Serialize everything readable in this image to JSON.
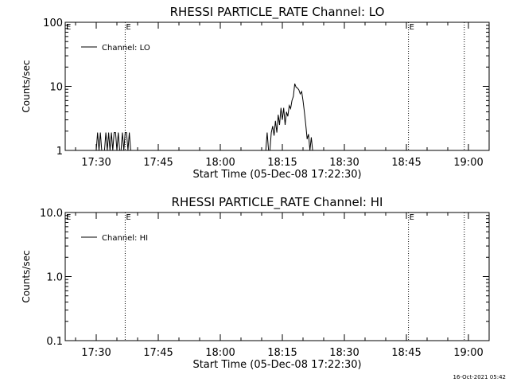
{
  "footer_timestamp": "16-Oct-2021 05:42",
  "chart_data": [
    {
      "type": "line",
      "title": "RHESSI PARTICLE_RATE Channel: LO",
      "xlabel": "Start Time (05-Dec-08 17:22:30)",
      "ylabel": "Counts/sec",
      "yscale": "log",
      "ylim": [
        1,
        100
      ],
      "xlim": [
        "17:22:30",
        "19:05:00"
      ],
      "x_ticks": [
        "17:30",
        "17:45",
        "18:00",
        "18:15",
        "18:30",
        "18:45",
        "19:00"
      ],
      "y_ticks": [
        "1",
        "10",
        "100"
      ],
      "grid": false,
      "legend": "top-left",
      "markers": [
        {
          "time": "17:37:00",
          "label": "E",
          "style": "dotted"
        },
        {
          "time": "18:45:30",
          "label": "E",
          "style": "dotted"
        },
        {
          "time": "18:59:00",
          "label": "",
          "style": "dotted"
        }
      ],
      "series": [
        {
          "name": "Channel: LO",
          "x": [
            "17:30:00",
            "17:30:20",
            "17:30:40",
            "17:31:00",
            "17:31:20",
            "17:31:40",
            "17:32:00",
            "17:32:20",
            "17:32:40",
            "17:33:00",
            "17:33:20",
            "17:33:40",
            "17:34:00",
            "17:34:20",
            "17:34:40",
            "17:35:00",
            "17:35:20",
            "17:35:40",
            "17:36:00",
            "17:36:20",
            "17:36:40",
            "17:37:00",
            "17:37:20",
            "17:37:40",
            "17:38:00",
            "17:38:20",
            "17:38:40",
            "18:11:00",
            "18:11:20",
            "18:11:40",
            "18:12:00",
            "18:12:20",
            "18:12:40",
            "18:13:00",
            "18:13:20",
            "18:13:40",
            "18:14:00",
            "18:14:20",
            "18:14:40",
            "18:15:00",
            "18:15:20",
            "18:15:40",
            "18:16:00",
            "18:16:20",
            "18:16:40",
            "18:17:00",
            "18:17:20",
            "18:17:40",
            "18:18:00",
            "18:18:20",
            "18:18:40",
            "18:19:00",
            "18:19:20",
            "18:19:40",
            "18:20:00",
            "18:20:20",
            "18:20:40",
            "18:21:00",
            "18:21:20",
            "18:21:40",
            "18:22:00",
            "18:22:20",
            "18:22:40",
            "18:23:00",
            "18:23:20",
            "18:23:40",
            "18:24:00",
            "18:24:20",
            "18:24:40",
            "18:25:00",
            "18:25:20",
            "18:25:40"
          ],
          "values": [
            1,
            1.9,
            1,
            1.9,
            1,
            1,
            1,
            1.9,
            1,
            1.9,
            1,
            1.9,
            1,
            1.9,
            1.9,
            1,
            1.9,
            1,
            1,
            1.9,
            1,
            1.9,
            1.9,
            1,
            1.9,
            1,
            1,
            1,
            1.9,
            1,
            1,
            1.9,
            2.4,
            1.7,
            2.9,
            1.9,
            3.6,
            2.5,
            4.6,
            3.0,
            4.6,
            2.5,
            4.0,
            3.4,
            5.0,
            4.5,
            6.0,
            7.0,
            11,
            9.7,
            9.4,
            8.8,
            7.6,
            8.3,
            6.0,
            4.0,
            2.5,
            1.5,
            1.8,
            1,
            1.6,
            1,
            1,
            1,
            1,
            1,
            1,
            1,
            1,
            1,
            1,
            1
          ]
        }
      ]
    },
    {
      "type": "line",
      "title": "RHESSI PARTICLE_RATE Channel: HI",
      "xlabel": "Start Time (05-Dec-08 17:22:30)",
      "ylabel": "Counts/sec",
      "yscale": "log",
      "ylim": [
        0.1,
        10.0
      ],
      "xlim": [
        "17:22:30",
        "19:05:00"
      ],
      "x_ticks": [
        "17:30",
        "17:45",
        "18:00",
        "18:15",
        "18:30",
        "18:45",
        "19:00"
      ],
      "y_ticks": [
        "0.1",
        "1.0",
        "10.0"
      ],
      "grid": false,
      "legend": "top-left",
      "markers": [
        {
          "time": "17:37:00",
          "label": "E",
          "style": "dotted"
        },
        {
          "time": "18:45:30",
          "label": "E",
          "style": "dotted"
        },
        {
          "time": "18:59:00",
          "label": "",
          "style": "dotted"
        }
      ],
      "series": [
        {
          "name": "Channel: HI",
          "x": [],
          "values": []
        }
      ]
    }
  ]
}
